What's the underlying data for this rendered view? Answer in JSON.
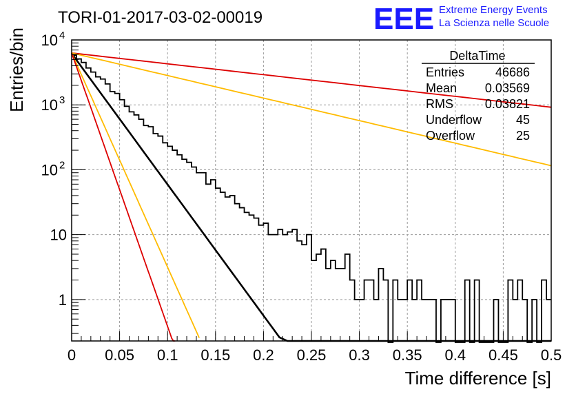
{
  "chart_data": {
    "type": "histogram",
    "title": "TORI-01-2017-03-02-00019",
    "xlabel": "Time difference [s]",
    "ylabel": "Entries/bin",
    "xlim": [
      0,
      0.5
    ],
    "ylim": [
      0.23,
      10000
    ],
    "yscale": "log",
    "grid": true,
    "x_ticks": [
      "0",
      "0.05",
      "0.1",
      "0.15",
      "0.2",
      "0.25",
      "0.3",
      "0.35",
      "0.4",
      "0.45",
      "0.5"
    ],
    "y_ticks": [
      {
        "label": "1",
        "value": 1
      },
      {
        "label": "10",
        "value": 10
      },
      {
        "label": "10",
        "sup": "2",
        "value": 100
      },
      {
        "label": "10",
        "sup": "3",
        "value": 1000
      },
      {
        "label": "10",
        "sup": "4",
        "value": 10000
      }
    ],
    "bin_width": 0.005,
    "histogram_counts": [
      5800,
      5100,
      4500,
      3700,
      3200,
      2700,
      2500,
      2100,
      1600,
      1500,
      1200,
      950,
      780,
      700,
      600,
      480,
      460,
      360,
      330,
      260,
      230,
      200,
      170,
      145,
      130,
      110,
      90,
      90,
      60,
      70,
      52,
      45,
      38,
      40,
      30,
      26,
      22,
      20,
      18,
      14,
      15,
      10,
      10,
      12,
      10,
      11,
      12,
      8,
      7,
      10,
      4,
      5,
      6,
      3,
      4,
      3,
      3,
      5,
      2,
      1,
      1,
      2,
      2,
      1,
      3,
      2,
      0,
      2,
      1,
      1,
      2,
      1,
      2,
      1,
      1,
      1,
      0,
      1,
      1,
      1,
      0,
      0,
      2,
      0,
      2,
      0,
      0,
      0,
      1,
      0,
      0,
      2,
      1,
      2,
      1,
      0,
      1,
      0,
      2,
      1
    ],
    "fit_lines": [
      {
        "color": "#000000",
        "y0": 6200,
        "slope_per_s": -46.5
      },
      {
        "color": "#dd0000",
        "y0": 6300,
        "slope_per_s": -3.85
      },
      {
        "color": "#ffbb00",
        "y0": 6300,
        "slope_per_s": -8.0
      },
      {
        "color": "#ffbb00",
        "y0": 6300,
        "slope_per_s": -76.0,
        "x_max": 0.133
      },
      {
        "color": "#dd0000",
        "y0": 6300,
        "slope_per_s": -97.0,
        "x_max": 0.108
      }
    ]
  },
  "stats_box": {
    "name": "DeltaTime",
    "rows": [
      {
        "label": "Entries",
        "value": "46686"
      },
      {
        "label": "Mean",
        "value": "0.03569"
      },
      {
        "label": "RMS",
        "value": "0.03821"
      },
      {
        "label": "Underflow",
        "value": "45"
      },
      {
        "label": "Overflow",
        "value": "25"
      }
    ]
  },
  "logo": {
    "big": "EEE",
    "line1": "Extreme Energy Events",
    "line2": "La Scienza nelle Scuole"
  },
  "colors": {
    "histogram": "#000000",
    "red": "#dd0000",
    "yellow": "#ffbb00",
    "logo": "#1a1aff"
  }
}
